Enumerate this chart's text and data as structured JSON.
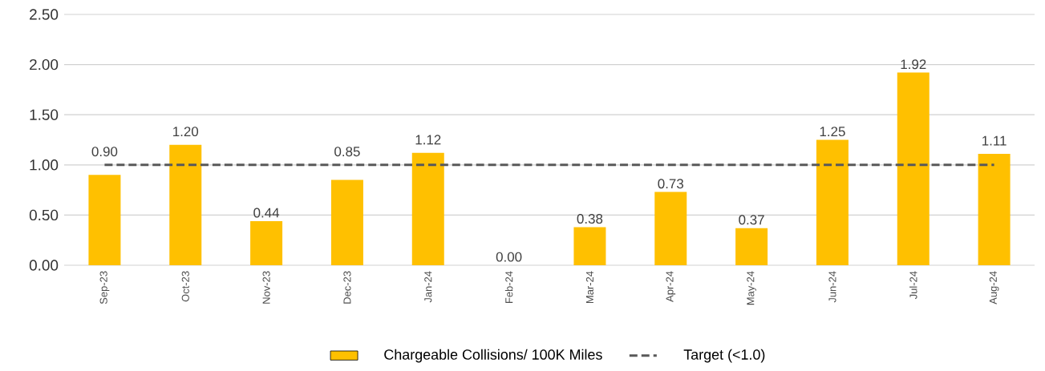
{
  "chart_data": {
    "type": "bar",
    "categories": [
      "Sep-23",
      "Oct-23",
      "Nov-23",
      "Dec-23",
      "Jan-24",
      "Feb-24",
      "Mar-24",
      "Apr-24",
      "May-24",
      "Jun-24",
      "Jul-24",
      "Aug-24"
    ],
    "series": [
      {
        "name": "Chargeable Collisions/ 100K Miles",
        "color": "#ffc000",
        "values": [
          0.9,
          1.2,
          0.44,
          0.85,
          1.12,
          0.0,
          0.38,
          0.73,
          0.37,
          1.25,
          1.92,
          1.11
        ],
        "value_labels": [
          "0.90",
          "1.20",
          "0.44",
          "0.85",
          "1.12",
          "0.00",
          "0.38",
          "0.73",
          "0.37",
          "1.25",
          "1.92",
          "1.11"
        ]
      },
      {
        "name": "Target (<1.0)",
        "type": "line",
        "color": "#595959",
        "line_style": "dashed",
        "values": [
          1.0,
          1.0,
          1.0,
          1.0,
          1.0,
          1.0,
          1.0,
          1.0,
          1.0,
          1.0,
          1.0,
          1.0
        ]
      }
    ],
    "ylim": [
      0,
      2.5
    ],
    "yticks": [
      {
        "value": 0,
        "label": "0.00"
      },
      {
        "value": 0.5,
        "label": "0.50"
      },
      {
        "value": 1.0,
        "label": "1.00"
      },
      {
        "value": 1.5,
        "label": "1.50"
      },
      {
        "value": 2.0,
        "label": "2.00"
      },
      {
        "value": 2.5,
        "label": "2.50"
      }
    ],
    "grid": "y",
    "legend": "bottom"
  }
}
